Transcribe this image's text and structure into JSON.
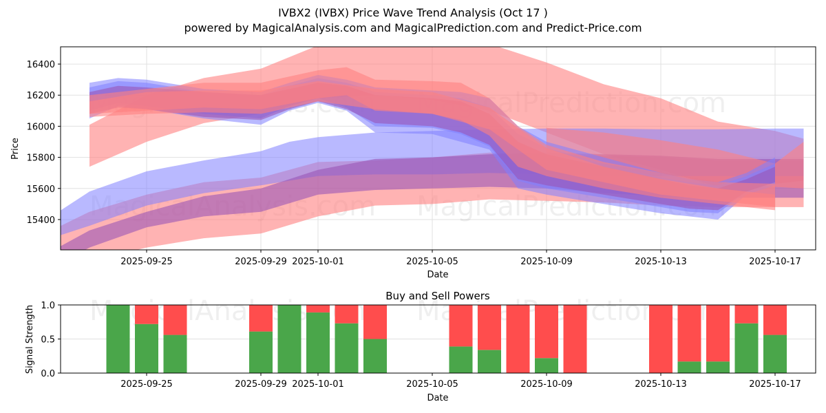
{
  "header": {
    "title": "IVBX2 (IVBX) Price Wave Trend Analysis (Oct 17 )",
    "subtitle": "powered by MagicalAnalysis.com and MagicalPrediction.com and Predict-Price.com"
  },
  "watermarks": [
    "MagicalAnalysis.com",
    "MagicalPrediction.com"
  ],
  "colors": {
    "buy": "#4aa64a",
    "sell": "#ff4d4d",
    "band_red": "#ff8080",
    "band_blue": "#8080ff",
    "grid": "#e0e0e0"
  },
  "chart_data": [
    {
      "type": "area",
      "title": "",
      "xlabel": "Date",
      "ylabel": "Price",
      "ylim": [
        15205,
        16511
      ],
      "xlim": [
        "2025-09-22",
        "2025-10-18"
      ],
      "yticks": [
        15400,
        15600,
        15800,
        16000,
        16200,
        16400
      ],
      "xticks": [
        "2025-09-25",
        "2025-09-29",
        "2025-10-01",
        "2025-10-05",
        "2025-10-09",
        "2025-10-13",
        "2025-10-17"
      ],
      "grid": true,
      "bands": [
        {
          "name": "red-wide-upper",
          "color": "red",
          "x": [
            "2025-09-23",
            "2025-09-25",
            "2025-09-27",
            "2025-09-29",
            "2025-10-01",
            "2025-10-03",
            "2025-10-05",
            "2025-10-07",
            "2025-10-09",
            "2025-10-11",
            "2025-10-13",
            "2025-10-15",
            "2025-10-17",
            "2025-10-18"
          ],
          "upper": [
            16010,
            16200,
            16310,
            16370,
            16520,
            16560,
            16560,
            16530,
            16410,
            16270,
            16180,
            16030,
            15970,
            15920
          ],
          "lower": [
            15740,
            15900,
            16020,
            16080,
            16180,
            16200,
            16170,
            16100,
            15960,
            15820,
            15720,
            15610,
            15630,
            15650
          ]
        },
        {
          "name": "red-wide-lower",
          "color": "red",
          "x": [
            "2025-09-22",
            "2025-09-23",
            "2025-09-25",
            "2025-09-27",
            "2025-09-29",
            "2025-10-01",
            "2025-10-03",
            "2025-10-05",
            "2025-10-07",
            "2025-10-09",
            "2025-10-11",
            "2025-10-13",
            "2025-10-15",
            "2025-10-17",
            "2025-10-18"
          ],
          "upper": [
            15360,
            15450,
            15560,
            15640,
            15670,
            15770,
            15780,
            15800,
            15830,
            15820,
            15810,
            15800,
            15780,
            15780,
            15780
          ],
          "lower": [
            15200,
            15130,
            15220,
            15280,
            15310,
            15420,
            15490,
            15500,
            15530,
            15520,
            15510,
            15490,
            15480,
            15480,
            15480
          ]
        },
        {
          "name": "blue-wide-upper",
          "color": "blue",
          "x": [
            "2025-09-22",
            "2025-09-23",
            "2025-09-25",
            "2025-09-27",
            "2025-09-29",
            "2025-09-30",
            "2025-10-01",
            "2025-10-03",
            "2025-10-05",
            "2025-10-07",
            "2025-10-09",
            "2025-10-11",
            "2025-10-13",
            "2025-10-15",
            "2025-10-17",
            "2025-10-18"
          ],
          "upper": [
            15460,
            15580,
            15710,
            15780,
            15840,
            15900,
            15930,
            15960,
            15970,
            15980,
            15985,
            15985,
            15980,
            15980,
            15985,
            15985
          ],
          "lower": [
            15300,
            15360,
            15490,
            15570,
            15620,
            15650,
            15680,
            15690,
            15690,
            15700,
            15690,
            15680,
            15680,
            15680,
            15680,
            15680
          ]
        },
        {
          "name": "purple-wide-lower",
          "color": "purple",
          "x": [
            "2025-09-22",
            "2025-09-23",
            "2025-09-25",
            "2025-09-27",
            "2025-09-29",
            "2025-10-01",
            "2025-10-03",
            "2025-10-05",
            "2025-10-07",
            "2025-10-09",
            "2025-10-11",
            "2025-10-13",
            "2025-10-15",
            "2025-10-17",
            "2025-10-18"
          ],
          "upper": [
            15230,
            15330,
            15450,
            15550,
            15600,
            15720,
            15790,
            15800,
            15820,
            15830,
            15820,
            15810,
            15790,
            15790,
            15790
          ],
          "lower": [
            15120,
            15220,
            15350,
            15420,
            15450,
            15560,
            15590,
            15600,
            15610,
            15600,
            15570,
            15550,
            15540,
            15540,
            15540
          ]
        },
        {
          "name": "red-decay",
          "color": "red",
          "x": [
            "2025-10-09",
            "2025-10-11",
            "2025-10-13",
            "2025-10-15",
            "2025-10-17",
            "2025-10-18"
          ],
          "upper": [
            15990,
            15960,
            15910,
            15850,
            15760,
            15900
          ],
          "lower": [
            15800,
            15760,
            15700,
            15640,
            15610,
            15600
          ]
        },
        {
          "name": "wave-1",
          "color": "blue",
          "x": [
            "2025-09-23",
            "2025-09-24",
            "2025-09-25",
            "2025-09-27",
            "2025-09-29",
            "2025-09-30",
            "2025-10-01",
            "2025-10-02",
            "2025-10-03",
            "2025-10-05",
            "2025-10-06",
            "2025-10-07",
            "2025-10-08",
            "2025-10-09",
            "2025-10-11",
            "2025-10-13",
            "2025-10-14",
            "2025-10-15",
            "2025-10-16",
            "2025-10-17"
          ],
          "upper": [
            16280,
            16310,
            16300,
            16240,
            16220,
            16280,
            16330,
            16300,
            16250,
            16230,
            16220,
            16180,
            16000,
            15900,
            15800,
            15700,
            15660,
            15640,
            15700,
            15800
          ],
          "lower": [
            16050,
            16130,
            16110,
            16050,
            16010,
            16100,
            16150,
            16100,
            15960,
            15950,
            15900,
            15850,
            15600,
            15560,
            15500,
            15440,
            15420,
            15400,
            15560,
            15620
          ]
        },
        {
          "name": "wave-2",
          "color": "blue",
          "x": [
            "2025-09-23",
            "2025-09-24",
            "2025-09-25",
            "2025-09-27",
            "2025-09-29",
            "2025-09-30",
            "2025-10-01",
            "2025-10-02",
            "2025-10-03",
            "2025-10-05",
            "2025-10-06",
            "2025-10-07",
            "2025-10-08",
            "2025-10-09",
            "2025-10-11",
            "2025-10-13",
            "2025-10-14",
            "2025-10-15",
            "2025-10-16",
            "2025-10-17"
          ],
          "upper": [
            16250,
            16290,
            16280,
            16220,
            16200,
            16260,
            16310,
            16280,
            16220,
            16200,
            16180,
            16120,
            15950,
            15860,
            15760,
            15670,
            15640,
            15620,
            15680,
            15760
          ],
          "lower": [
            16100,
            16150,
            16130,
            16080,
            16050,
            16130,
            16180,
            16120,
            16000,
            15990,
            15950,
            15870,
            15650,
            15600,
            15540,
            15480,
            15450,
            15440,
            15580,
            15640
          ]
        },
        {
          "name": "wave-3",
          "color": "purple",
          "x": [
            "2025-09-23",
            "2025-09-24",
            "2025-09-25",
            "2025-09-27",
            "2025-09-29",
            "2025-09-30",
            "2025-10-01",
            "2025-10-02",
            "2025-10-03",
            "2025-10-05",
            "2025-10-06",
            "2025-10-07",
            "2025-10-08",
            "2025-10-09",
            "2025-10-11",
            "2025-10-13",
            "2025-10-14",
            "2025-10-15",
            "2025-10-16",
            "2025-10-17"
          ],
          "upper": [
            16220,
            16260,
            16250,
            16220,
            16200,
            16240,
            16280,
            16260,
            16200,
            16180,
            16160,
            16080,
            15900,
            15820,
            15740,
            15660,
            15620,
            15600,
            15660,
            15740
          ],
          "lower": [
            16080,
            16120,
            16110,
            16060,
            16040,
            16110,
            16160,
            16110,
            16020,
            16000,
            15960,
            15880,
            15660,
            15620,
            15560,
            15500,
            15470,
            15460,
            15580,
            15640
          ]
        },
        {
          "name": "wave-4",
          "color": "red",
          "x": [
            "2025-09-23",
            "2025-09-25",
            "2025-09-27",
            "2025-09-29",
            "2025-10-01",
            "2025-10-02",
            "2025-10-03",
            "2025-10-05",
            "2025-10-06",
            "2025-10-07",
            "2025-10-08",
            "2025-10-09",
            "2025-10-11",
            "2025-10-13",
            "2025-10-15",
            "2025-10-17"
          ],
          "upper": [
            16200,
            16240,
            16280,
            16280,
            16360,
            16380,
            16300,
            16290,
            16280,
            16180,
            16000,
            15880,
            15770,
            15700,
            15640,
            15630
          ],
          "lower": [
            16080,
            16100,
            16120,
            16110,
            16180,
            16200,
            16100,
            16080,
            16040,
            15940,
            15740,
            15680,
            15600,
            15540,
            15500,
            15460
          ]
        },
        {
          "name": "wave-5",
          "color": "red",
          "x": [
            "2025-09-23",
            "2025-09-25",
            "2025-09-27",
            "2025-09-29",
            "2025-10-01",
            "2025-10-03",
            "2025-10-05",
            "2025-10-07",
            "2025-10-09",
            "2025-10-11",
            "2025-10-13",
            "2025-10-15",
            "2025-10-17"
          ],
          "upper": [
            16160,
            16220,
            16230,
            16230,
            16290,
            16240,
            16220,
            16120,
            15860,
            15740,
            15660,
            15600,
            15560
          ],
          "lower": [
            16060,
            16080,
            16090,
            16080,
            16160,
            16110,
            16080,
            15980,
            15720,
            15640,
            15560,
            15520,
            15480
          ]
        }
      ]
    },
    {
      "type": "bar",
      "title": "Buy and Sell Powers",
      "xlabel": "Date",
      "ylabel": "Signal Strength",
      "ylim": [
        0,
        1.0
      ],
      "yticks": [
        "0.0",
        "0.5",
        "1.0"
      ],
      "xticks": [
        "2025-09-25",
        "2025-09-29",
        "2025-10-01",
        "2025-10-05",
        "2025-10-09",
        "2025-10-13",
        "2025-10-17"
      ],
      "grid": true,
      "categories": [
        "2025-09-24",
        "2025-09-25",
        "2025-09-26",
        "2025-09-29",
        "2025-09-30",
        "2025-10-01",
        "2025-10-02",
        "2025-10-03",
        "2025-10-06",
        "2025-10-07",
        "2025-10-08",
        "2025-10-09",
        "2025-10-10",
        "2025-10-13",
        "2025-10-14",
        "2025-10-15",
        "2025-10-16",
        "2025-10-17"
      ],
      "series": [
        {
          "name": "Buy",
          "values": [
            1.0,
            0.72,
            0.56,
            0.61,
            1.0,
            0.89,
            0.73,
            0.5,
            0.39,
            0.34,
            0.0,
            0.22,
            0.0,
            0.0,
            0.17,
            0.17,
            0.73,
            0.56
          ]
        },
        {
          "name": "Sell",
          "values": [
            0.0,
            0.28,
            0.44,
            0.39,
            0.0,
            0.11,
            0.27,
            0.5,
            0.61,
            0.66,
            1.0,
            0.78,
            1.0,
            1.0,
            0.83,
            0.83,
            0.27,
            0.44
          ]
        }
      ]
    }
  ]
}
